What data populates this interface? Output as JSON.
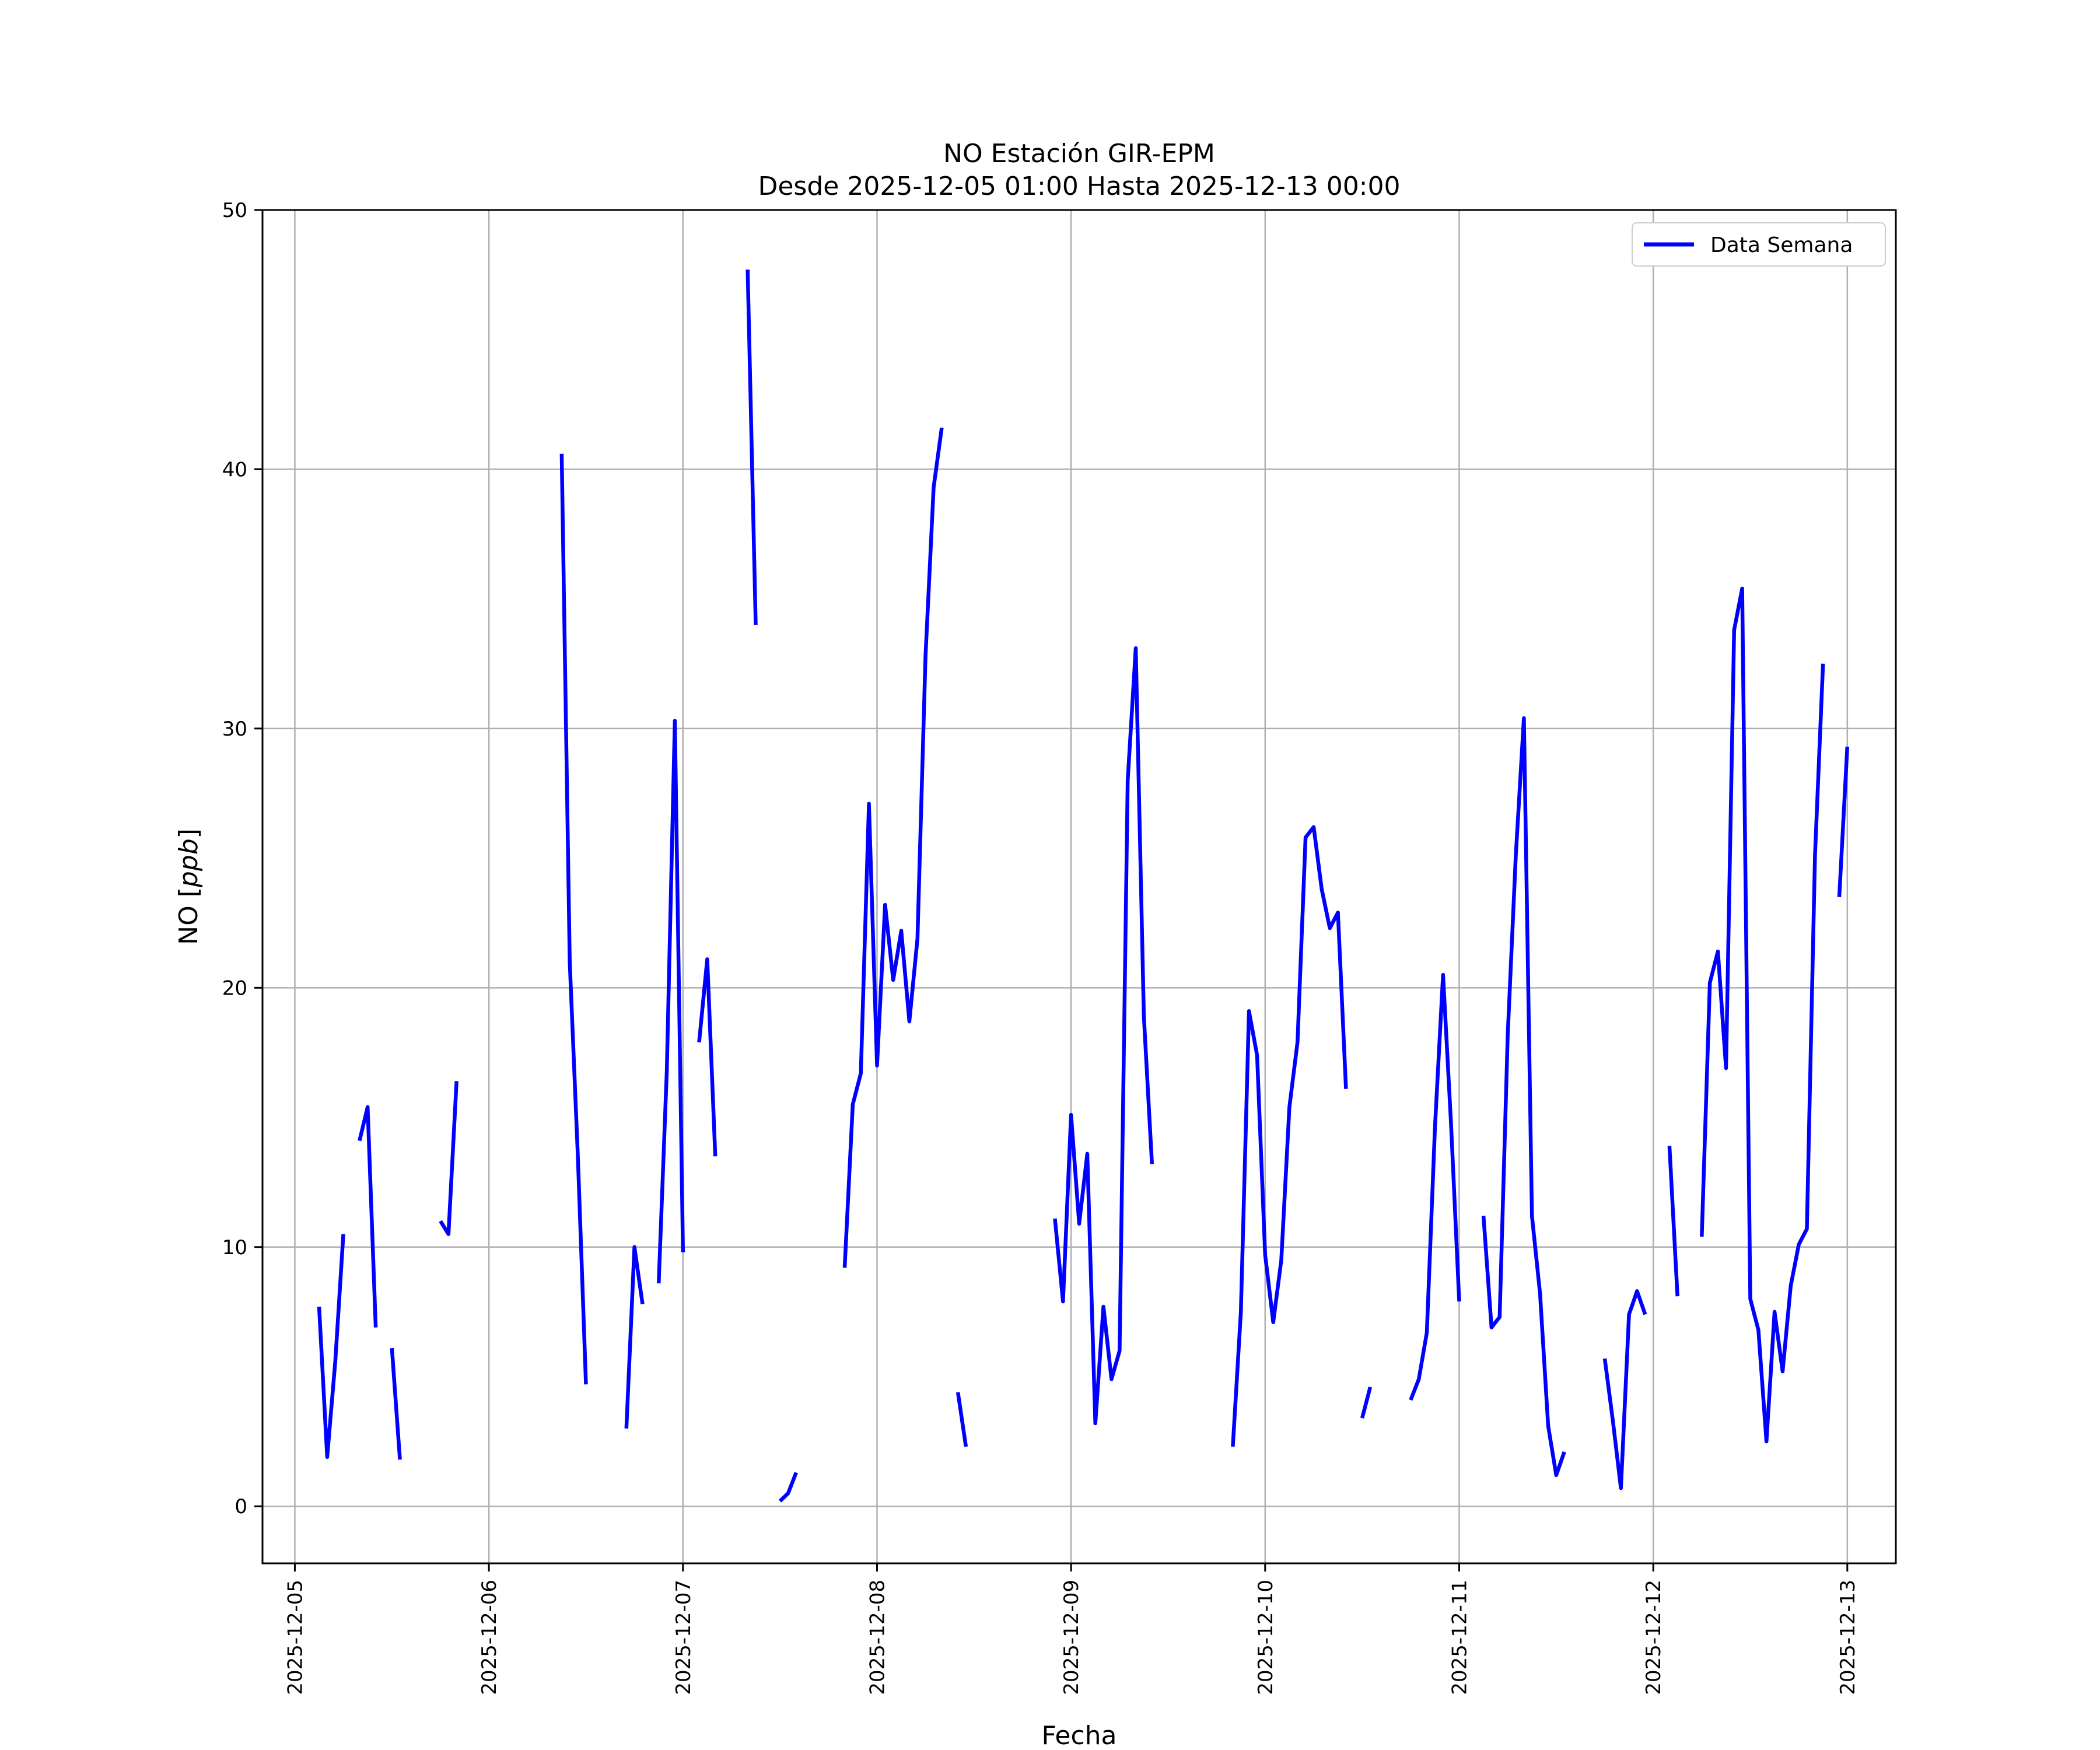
{
  "chart_data": {
    "type": "line",
    "title": "NO Estación GIR-EPM",
    "subtitle": "Desde 2025-12-05 01:00 Hasta 2025-12-13 00:00",
    "xlabel": "Fecha",
    "ylabel": "NO [ppb]",
    "ylabel_text": "NO [",
    "ylabel_unit": "ppb",
    "ylabel_close": "]",
    "xlim": [
      "2025-12-04 20:00",
      "2025-12-13 06:00"
    ],
    "ylim": [
      -2.2,
      50
    ],
    "x_ticks": [
      "2025-12-05",
      "2025-12-06",
      "2025-12-07",
      "2025-12-08",
      "2025-12-09",
      "2025-12-10",
      "2025-12-11",
      "2025-12-12",
      "2025-12-13"
    ],
    "y_ticks": [
      0,
      10,
      20,
      30,
      40,
      50
    ],
    "grid": true,
    "legend_position": "top-right",
    "series": [
      {
        "name": "Data Semana",
        "color": "#0000ff",
        "segments": [
          [
            [
              "2025-12-05 03:00",
              7.7
            ],
            [
              "2025-12-05 04:00",
              1.9
            ],
            [
              "2025-12-05 05:00",
              5.6
            ],
            [
              "2025-12-05 06:00",
              10.5
            ]
          ],
          [
            [
              "2025-12-05 08:00",
              14.1
            ],
            [
              "2025-12-05 09:00",
              15.4
            ],
            [
              "2025-12-05 10:00",
              6.9
            ]
          ],
          [
            [
              "2025-12-05 12:00",
              6.1
            ],
            [
              "2025-12-05 13:00",
              1.8
            ]
          ],
          [
            [
              "2025-12-05 18:00",
              11.0
            ],
            [
              "2025-12-05 19:00",
              10.5
            ],
            [
              "2025-12-05 20:00",
              16.4
            ]
          ],
          [
            [
              "2025-12-06 09:00",
              40.6
            ],
            [
              "2025-12-06 10:00",
              21.0
            ],
            [
              "2025-12-06 11:00",
              13.5
            ],
            [
              "2025-12-06 12:00",
              4.7
            ]
          ],
          [
            [
              "2025-12-06 17:00",
              3.0
            ],
            [
              "2025-12-06 18:00",
              10.0
            ],
            [
              "2025-12-06 19:00",
              7.8
            ]
          ],
          [
            [
              "2025-12-06 21:00",
              8.6
            ],
            [
              "2025-12-06 22:00",
              16.8
            ],
            [
              "2025-12-06 23:00",
              30.3
            ],
            [
              "2025-12-07 00:00",
              9.8
            ]
          ],
          [
            [
              "2025-12-07 02:00",
              17.9
            ],
            [
              "2025-12-07 03:00",
              21.1
            ],
            [
              "2025-12-07 04:00",
              13.5
            ]
          ],
          [
            [
              "2025-12-07 08:00",
              47.7
            ],
            [
              "2025-12-07 09:00",
              34.0
            ]
          ],
          [
            [
              "2025-12-07 12:00",
              0.2
            ],
            [
              "2025-12-07 13:00",
              0.5
            ],
            [
              "2025-12-07 14:00",
              1.3
            ]
          ],
          [
            [
              "2025-12-07 20:00",
              9.2
            ],
            [
              "2025-12-07 21:00",
              15.5
            ],
            [
              "2025-12-07 22:00",
              16.7
            ],
            [
              "2025-12-07 23:00",
              27.1
            ],
            [
              "2025-12-08 00:00",
              17.0
            ],
            [
              "2025-12-08 01:00",
              23.2
            ],
            [
              "2025-12-08 02:00",
              20.3
            ],
            [
              "2025-12-08 03:00",
              22.2
            ],
            [
              "2025-12-08 04:00",
              18.7
            ],
            [
              "2025-12-08 05:00",
              21.9
            ],
            [
              "2025-12-08 06:00",
              32.8
            ],
            [
              "2025-12-08 07:00",
              39.3
            ],
            [
              "2025-12-08 08:00",
              41.6
            ]
          ],
          [
            [
              "2025-12-08 10:00",
              4.4
            ],
            [
              "2025-12-08 11:00",
              2.3
            ]
          ],
          [
            [
              "2025-12-08 22:00",
              11.1
            ],
            [
              "2025-12-08 23:00",
              7.9
            ],
            [
              "2025-12-09 00:00",
              15.1
            ],
            [
              "2025-12-09 01:00",
              10.9
            ],
            [
              "2025-12-09 02:00",
              13.6
            ],
            [
              "2025-12-09 03:00",
              3.2
            ],
            [
              "2025-12-09 04:00",
              7.7
            ],
            [
              "2025-12-09 05:00",
              4.9
            ],
            [
              "2025-12-09 06:00",
              6.0
            ],
            [
              "2025-12-09 07:00",
              28.0
            ],
            [
              "2025-12-09 08:00",
              33.1
            ],
            [
              "2025-12-09 09:00",
              18.9
            ],
            [
              "2025-12-09 10:00",
              13.2
            ]
          ],
          [
            [
              "2025-12-09 20:00",
              2.3
            ],
            [
              "2025-12-09 21:00",
              7.5
            ],
            [
              "2025-12-09 22:00",
              19.1
            ],
            [
              "2025-12-09 23:00",
              17.4
            ],
            [
              "2025-12-10 00:00",
              9.7
            ],
            [
              "2025-12-10 01:00",
              7.1
            ],
            [
              "2025-12-10 02:00",
              9.5
            ],
            [
              "2025-12-10 03:00",
              15.4
            ],
            [
              "2025-12-10 04:00",
              17.9
            ],
            [
              "2025-12-10 05:00",
              25.8
            ],
            [
              "2025-12-10 06:00",
              26.2
            ],
            [
              "2025-12-10 07:00",
              23.8
            ],
            [
              "2025-12-10 08:00",
              22.3
            ],
            [
              "2025-12-10 09:00",
              22.9
            ],
            [
              "2025-12-10 10:00",
              16.1
            ]
          ],
          [
            [
              "2025-12-10 12:00",
              3.4
            ],
            [
              "2025-12-10 13:00",
              4.6
            ]
          ],
          [
            [
              "2025-12-10 18:00",
              4.1
            ],
            [
              "2025-12-10 19:00",
              4.9
            ],
            [
              "2025-12-10 20:00",
              6.7
            ],
            [
              "2025-12-10 21:00",
              14.6
            ],
            [
              "2025-12-10 22:00",
              20.5
            ],
            [
              "2025-12-10 23:00",
              14.7
            ],
            [
              "2025-12-11 00:00",
              7.9
            ]
          ],
          [
            [
              "2025-12-11 03:00",
              11.2
            ],
            [
              "2025-12-11 04:00",
              6.9
            ],
            [
              "2025-12-11 05:00",
              7.3
            ],
            [
              "2025-12-11 06:00",
              18.2
            ],
            [
              "2025-12-11 07:00",
              25.1
            ],
            [
              "2025-12-11 08:00",
              30.4
            ],
            [
              "2025-12-11 09:00",
              11.2
            ],
            [
              "2025-12-11 10:00",
              8.2
            ],
            [
              "2025-12-11 11:00",
              3.1
            ],
            [
              "2025-12-11 12:00",
              1.2
            ],
            [
              "2025-12-11 13:00",
              2.1
            ]
          ],
          [
            [
              "2025-12-11 18:00",
              5.7
            ],
            [
              "2025-12-11 19:00",
              3.3
            ],
            [
              "2025-12-11 20:00",
              0.7
            ],
            [
              "2025-12-11 21:00",
              7.4
            ],
            [
              "2025-12-11 22:00",
              8.3
            ],
            [
              "2025-12-11 23:00",
              7.4
            ]
          ],
          [
            [
              "2025-12-12 02:00",
              13.9
            ],
            [
              "2025-12-12 03:00",
              8.1
            ]
          ],
          [
            [
              "2025-12-12 06:00",
              10.4
            ],
            [
              "2025-12-12 07:00",
              20.2
            ],
            [
              "2025-12-12 08:00",
              21.4
            ],
            [
              "2025-12-12 09:00",
              16.9
            ],
            [
              "2025-12-12 10:00",
              33.8
            ],
            [
              "2025-12-12 11:00",
              35.4
            ],
            [
              "2025-12-12 12:00",
              8.0
            ],
            [
              "2025-12-12 13:00",
              6.8
            ],
            [
              "2025-12-12 14:00",
              2.5
            ],
            [
              "2025-12-12 15:00",
              7.5
            ],
            [
              "2025-12-12 16:00",
              5.2
            ],
            [
              "2025-12-12 17:00",
              8.5
            ],
            [
              "2025-12-12 18:00",
              10.1
            ],
            [
              "2025-12-12 19:00",
              10.7
            ],
            [
              "2025-12-12 20:00",
              25.1
            ],
            [
              "2025-12-12 21:00",
              32.5
            ]
          ],
          [
            [
              "2025-12-12 23:00",
              23.5
            ],
            [
              "2025-12-13 00:00",
              29.3
            ]
          ]
        ]
      }
    ]
  }
}
